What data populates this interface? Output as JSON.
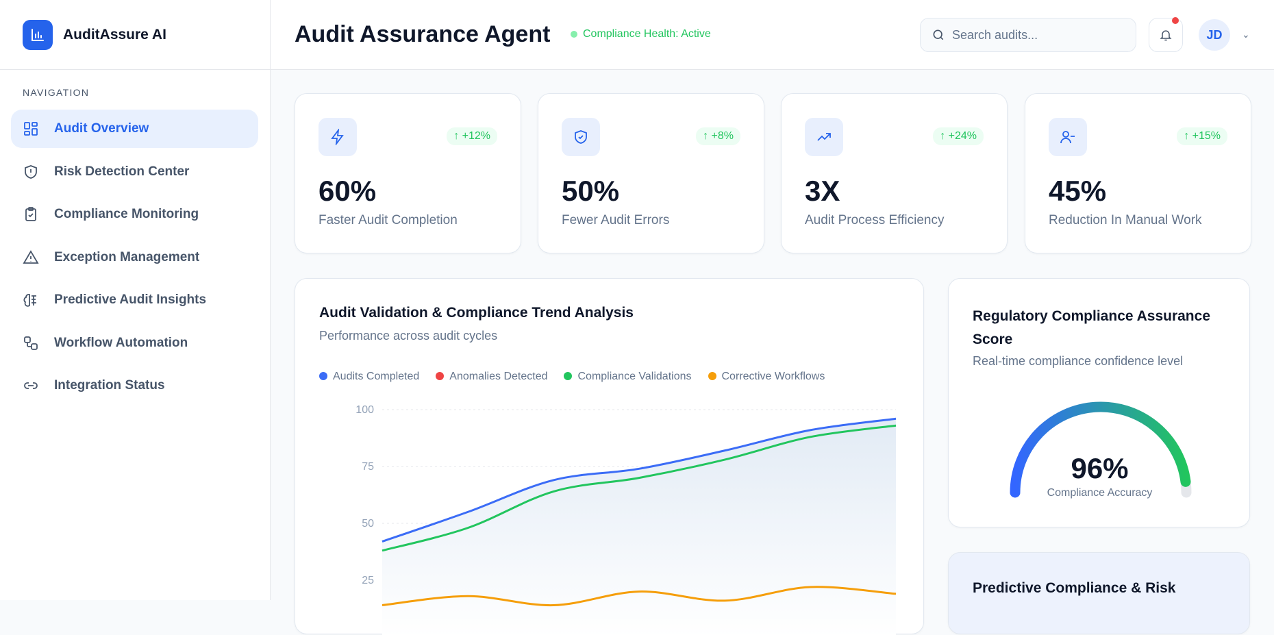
{
  "brand": {
    "name": "AuditAssure AI"
  },
  "header": {
    "title": "Audit Assurance Agent",
    "status": "Compliance Health: Active",
    "search_placeholder": "Search audits...",
    "avatar": "JD"
  },
  "sidebar": {
    "section": "NAVIGATION",
    "items": [
      {
        "label": "Audit Overview",
        "icon": "grid-icon",
        "active": true
      },
      {
        "label": "Risk Detection Center",
        "icon": "shield-alert-icon"
      },
      {
        "label": "Compliance Monitoring",
        "icon": "clipboard-check-icon"
      },
      {
        "label": "Exception Management",
        "icon": "warning-triangle-icon"
      },
      {
        "label": "Predictive Audit Insights",
        "icon": "brain-icon"
      },
      {
        "label": "Workflow Automation",
        "icon": "workflow-icon"
      },
      {
        "label": "Integration Status",
        "icon": "link-icon"
      }
    ]
  },
  "stats": [
    {
      "value": "60%",
      "label": "Faster Audit Completion",
      "change": "↑ +12%",
      "icon": "zap-icon"
    },
    {
      "value": "50%",
      "label": "Fewer Audit Errors",
      "change": "↑ +8%",
      "icon": "shield-check-icon"
    },
    {
      "value": "3X",
      "label": "Audit Process Efficiency",
      "change": "↑ +24%",
      "icon": "trending-up-icon"
    },
    {
      "value": "45%",
      "label": "Reduction In Manual Work",
      "change": "↑ +15%",
      "icon": "user-minus-icon"
    }
  ],
  "trend": {
    "title": "Audit Validation & Compliance Trend Analysis",
    "subtitle": "Performance across audit cycles"
  },
  "chart_data": {
    "type": "line",
    "ylim": [
      0,
      100
    ],
    "yticks": [
      25,
      50,
      75,
      100
    ],
    "grid": true,
    "legend": "top",
    "series": [
      {
        "name": "Audits Completed",
        "color": "#3b6cf6",
        "values": [
          42,
          55,
          69,
          74,
          82,
          91,
          96
        ]
      },
      {
        "name": "Anomalies Detected",
        "color": "#ef4444",
        "values": []
      },
      {
        "name": "Compliance Validations",
        "color": "#22c55e",
        "values": [
          38,
          48,
          64,
          70,
          78,
          88,
          93
        ]
      },
      {
        "name": "Corrective Workflows",
        "color": "#f59e0b",
        "values": [
          14,
          18,
          14,
          20,
          16,
          22,
          19
        ]
      }
    ]
  },
  "gauge": {
    "title": "Regulatory Compliance Assurance Score",
    "subtitle": "Real-time compliance confidence level",
    "value": "96%",
    "percent": 96,
    "label": "Compliance Accuracy"
  },
  "predictive": {
    "title": "Predictive Compliance & Risk"
  }
}
